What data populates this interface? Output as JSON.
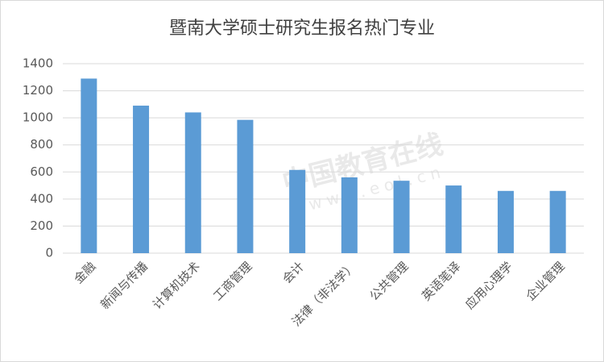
{
  "chart_data": {
    "type": "bar",
    "title": "暨南大学硕士研究生报名热门专业",
    "categories": [
      "金融",
      "新闻与传播",
      "计算机技术",
      "工商管理",
      "会计",
      "法律（非法学）",
      "公共管理",
      "英语笔译",
      "应用心理学",
      "企业管理"
    ],
    "values": [
      1290,
      1090,
      1040,
      985,
      615,
      560,
      535,
      500,
      460,
      460
    ],
    "color": "#5b9bd5",
    "ylim": [
      0,
      1400
    ],
    "yticks": [
      0,
      200,
      400,
      600,
      800,
      1000,
      1200,
      1400
    ],
    "grid": true,
    "watermark": [
      "中国教育在线",
      "www.eol.cn"
    ]
  }
}
